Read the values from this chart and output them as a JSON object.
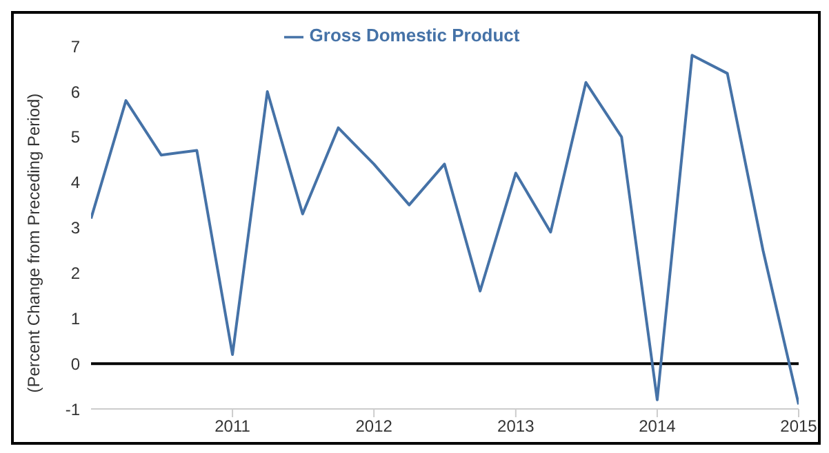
{
  "chart_data": {
    "type": "line",
    "ylabel": "(Percent Change from Preceding Period)",
    "x": [
      "2010-01",
      "2010-04",
      "2010-07",
      "2010-10",
      "2011-01",
      "2011-04",
      "2011-07",
      "2011-10",
      "2012-01",
      "2012-04",
      "2012-07",
      "2012-10",
      "2013-01",
      "2013-04",
      "2013-07",
      "2013-10",
      "2014-01",
      "2014-04",
      "2014-07",
      "2014-10",
      "2015-01"
    ],
    "series": [
      {
        "name": "Gross Domestic Product",
        "color": "#4572a7",
        "values": [
          3.2,
          5.8,
          4.6,
          4.7,
          0.2,
          6.0,
          3.3,
          5.2,
          4.4,
          3.5,
          4.4,
          1.6,
          4.2,
          2.9,
          6.2,
          5.0,
          -0.8,
          6.8,
          6.4,
          2.5,
          -0.9
        ]
      }
    ],
    "xlim": [
      "2010-01",
      "2015-01"
    ],
    "xticks": [
      {
        "value": "2011-01",
        "label": "2011"
      },
      {
        "value": "2012-01",
        "label": "2012"
      },
      {
        "value": "2013-01",
        "label": "2013"
      },
      {
        "value": "2014-01",
        "label": "2014"
      },
      {
        "value": "2015-01",
        "label": "2015"
      }
    ],
    "ylim": [
      -1,
      7
    ],
    "yticks": [
      -1,
      0,
      1,
      2,
      3,
      4,
      5,
      6,
      7
    ],
    "ref_lines": [
      {
        "axis": "y",
        "value": 0,
        "color": "#000000"
      }
    ],
    "legend": "top",
    "marker": "none",
    "line_style": "solid"
  }
}
